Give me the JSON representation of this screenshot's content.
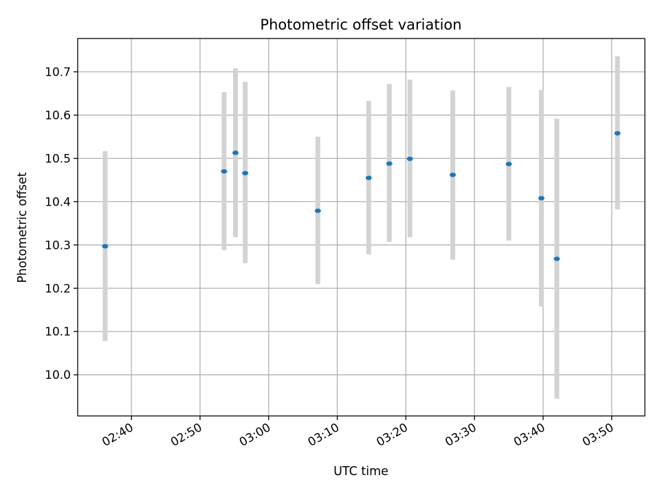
{
  "chart_data": {
    "type": "scatter",
    "title": "Photometric offset variation",
    "xlabel": "UTC time",
    "ylabel": "Photometric offset",
    "x_ticks": [
      "02:40",
      "02:50",
      "03:00",
      "03:10",
      "03:20",
      "03:30",
      "03:40",
      "03:50"
    ],
    "y_ticks": [
      "10.0",
      "10.1",
      "10.2",
      "10.3",
      "10.4",
      "10.5",
      "10.6",
      "10.7"
    ],
    "xlim": [
      "02:32:10",
      "03:54:50"
    ],
    "ylim": [
      9.905,
      10.777
    ],
    "grid": true,
    "legend": "none",
    "colors": {
      "marker": "#1f77b4",
      "errorbar": "#d3d3d3",
      "grid": "#b0b0b0"
    },
    "points": [
      {
        "t": "02:36:10",
        "y": 10.297,
        "y_low": 10.078,
        "y_high": 10.517
      },
      {
        "t": "02:53:30",
        "y": 10.47,
        "y_low": 10.288,
        "y_high": 10.653
      },
      {
        "t": "02:55:10",
        "y": 10.513,
        "y_low": 10.318,
        "y_high": 10.708
      },
      {
        "t": "02:56:35",
        "y": 10.466,
        "y_low": 10.258,
        "y_high": 10.677
      },
      {
        "t": "03:07:10",
        "y": 10.379,
        "y_low": 10.21,
        "y_high": 10.55
      },
      {
        "t": "03:14:35",
        "y": 10.455,
        "y_low": 10.278,
        "y_high": 10.633
      },
      {
        "t": "03:17:35",
        "y": 10.488,
        "y_low": 10.307,
        "y_high": 10.672
      },
      {
        "t": "03:20:35",
        "y": 10.499,
        "y_low": 10.318,
        "y_high": 10.682
      },
      {
        "t": "03:26:50",
        "y": 10.462,
        "y_low": 10.266,
        "y_high": 10.657
      },
      {
        "t": "03:35:00",
        "y": 10.487,
        "y_low": 10.31,
        "y_high": 10.665
      },
      {
        "t": "03:39:45",
        "y": 10.408,
        "y_low": 10.158,
        "y_high": 10.658
      },
      {
        "t": "03:42:00",
        "y": 10.268,
        "y_low": 9.945,
        "y_high": 10.592
      },
      {
        "t": "03:50:50",
        "y": 10.558,
        "y_low": 10.382,
        "y_high": 10.736
      }
    ]
  }
}
